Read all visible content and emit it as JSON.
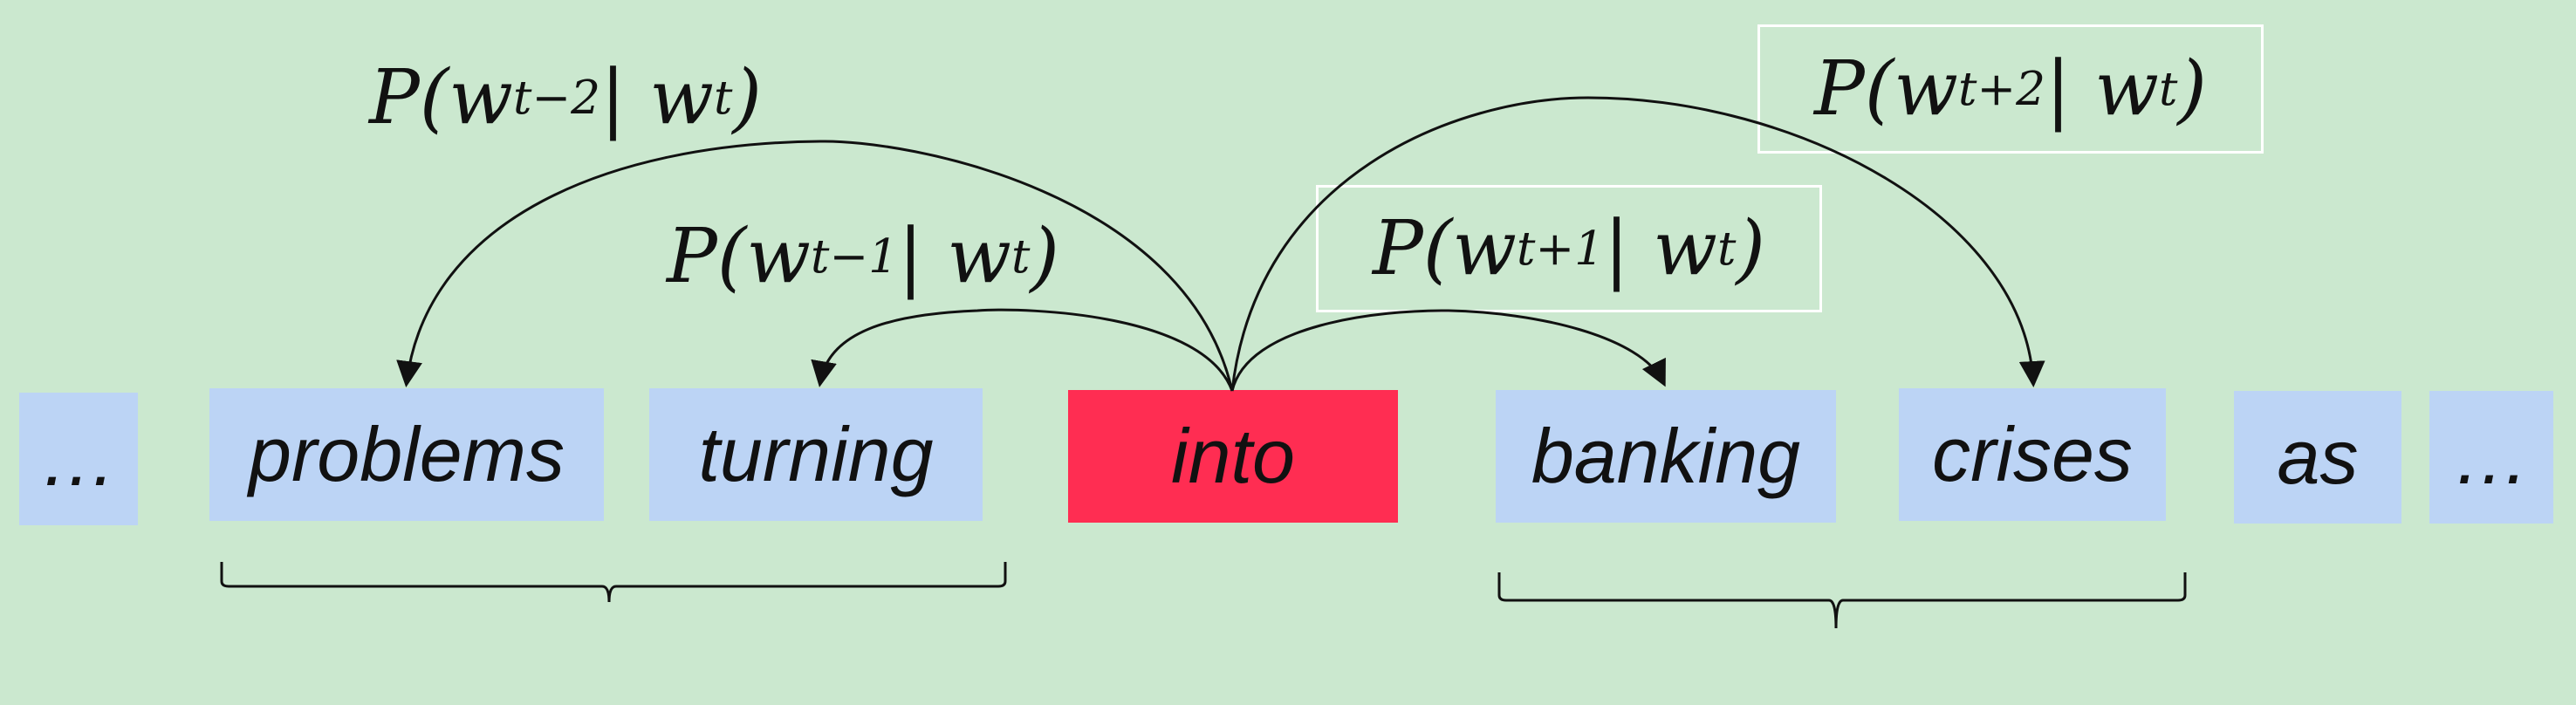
{
  "sentence": {
    "tokens": [
      {
        "text": "…",
        "role": "ellipsis"
      },
      {
        "text": "problems",
        "role": "context"
      },
      {
        "text": "turning",
        "role": "context"
      },
      {
        "text": "into",
        "role": "center"
      },
      {
        "text": "banking",
        "role": "context"
      },
      {
        "text": "crises",
        "role": "context"
      },
      {
        "text": "as",
        "role": "outside"
      },
      {
        "text": "…",
        "role": "ellipsis"
      }
    ]
  },
  "probabilities": [
    {
      "id": "t-2",
      "prefix": "P(w",
      "sub1": "t−2",
      "mid": " | w",
      "sub2": "t",
      "suffix": ")",
      "framed": false
    },
    {
      "id": "t-1",
      "prefix": "P(w",
      "sub1": "t−1",
      "mid": " | w",
      "sub2": "t",
      "suffix": ")",
      "framed": false
    },
    {
      "id": "t+1",
      "prefix": "P(w",
      "sub1": "t+1",
      "mid": " | w",
      "sub2": "t",
      "suffix": ")",
      "framed": true
    },
    {
      "id": "t+2",
      "prefix": "P(w",
      "sub1": "t+2",
      "mid": " | w",
      "sub2": "t",
      "suffix": ")",
      "framed": true
    }
  ],
  "colors": {
    "background": "#cbe8cf",
    "context_box": "#bcd4f5",
    "center_box": "#ff2d52",
    "frame": "#ffffff",
    "line": "#111111"
  }
}
